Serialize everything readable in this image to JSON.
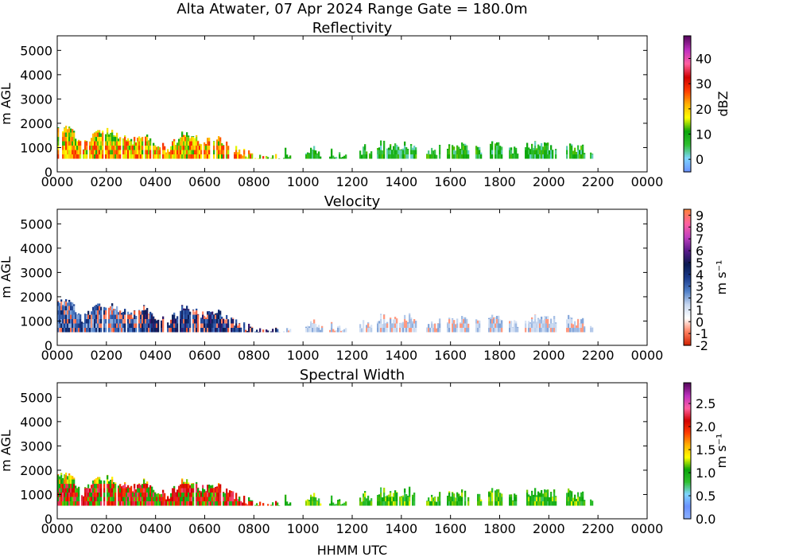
{
  "figure": {
    "title": "Alta Atwater, 07 Apr 2024 Range Gate = 180.0m",
    "xlabel": "HHMM UTC"
  },
  "chart_data": [
    {
      "type": "heatmap",
      "title": "Reflectivity",
      "ylabel": "m AGL",
      "ylim": [
        0,
        5600
      ],
      "yticks": [
        "0",
        "1000",
        "2000",
        "3000",
        "4000",
        "5000"
      ],
      "xticks": [
        "0000",
        "0200",
        "0400",
        "0600",
        "0800",
        "1000",
        "1200",
        "1400",
        "1600",
        "1800",
        "2000",
        "2200",
        "0000"
      ],
      "colorbar_label": "dBZ",
      "colorbar_range": [
        -5,
        49
      ],
      "colorbar_ticks": [
        "0",
        "10",
        "20",
        "30",
        "40"
      ],
      "colormap": [
        "#6b93ff",
        "#7fd6ff",
        "#2fbf2f",
        "#0aa50a",
        "#ffff00",
        "#ffb000",
        "#ff3c00",
        "#d00000",
        "#ff60a0",
        "#c030c0",
        "#5a0a60"
      ],
      "data_extent_utc": [
        "0000",
        "2110"
      ],
      "data_gates_m": [
        540,
        2100
      ]
    },
    {
      "type": "heatmap",
      "title": "Velocity",
      "ylabel": "m AGL",
      "ylim": [
        0,
        5600
      ],
      "yticks": [
        "0",
        "1000",
        "2000",
        "3000",
        "4000",
        "5000"
      ],
      "xticks": [
        "0000",
        "0200",
        "0400",
        "0600",
        "0800",
        "1000",
        "1200",
        "1400",
        "1600",
        "1800",
        "2000",
        "2200",
        "0000"
      ],
      "colorbar_label": "m s⁻¹",
      "colorbar_range": [
        -2,
        9.5
      ],
      "colorbar_ticks": [
        "-2",
        "-1",
        "0",
        "1",
        "2",
        "3",
        "4",
        "5",
        "6",
        "7",
        "8",
        "9"
      ],
      "colormap": [
        "#d02000",
        "#ff8060",
        "#ffffff",
        "#c8d8f0",
        "#5080c8",
        "#1a3a8a",
        "#0a1a50",
        "#5a1a8a",
        "#c040c0",
        "#ff60a0",
        "#ff8040"
      ],
      "data_extent_utc": [
        "0000",
        "2110"
      ],
      "data_gates_m": [
        540,
        2100
      ]
    },
    {
      "type": "heatmap",
      "title": "Spectral Width",
      "ylabel": "m AGL",
      "ylim": [
        0,
        5600
      ],
      "yticks": [
        "0",
        "1000",
        "2000",
        "3000",
        "4000",
        "5000"
      ],
      "xticks": [
        "0000",
        "0200",
        "0400",
        "0600",
        "0800",
        "1000",
        "1200",
        "1400",
        "1600",
        "1800",
        "2000",
        "2200",
        "0000"
      ],
      "colorbar_label": "m s⁻¹",
      "colorbar_range": [
        0,
        2.95
      ],
      "colorbar_ticks": [
        "0.0",
        "0.5",
        "1.0",
        "1.5",
        "2.0",
        "2.5"
      ],
      "colormap": [
        "#8ab0ff",
        "#6b93ff",
        "#7fd6ff",
        "#2fbf2f",
        "#0aa50a",
        "#ffff00",
        "#ffb000",
        "#ff3c00",
        "#d00000",
        "#ff60a0",
        "#c030c0",
        "#5a0a60"
      ],
      "data_extent_utc": [
        "0000",
        "2110"
      ],
      "data_gates_m": [
        540,
        2100
      ]
    }
  ]
}
